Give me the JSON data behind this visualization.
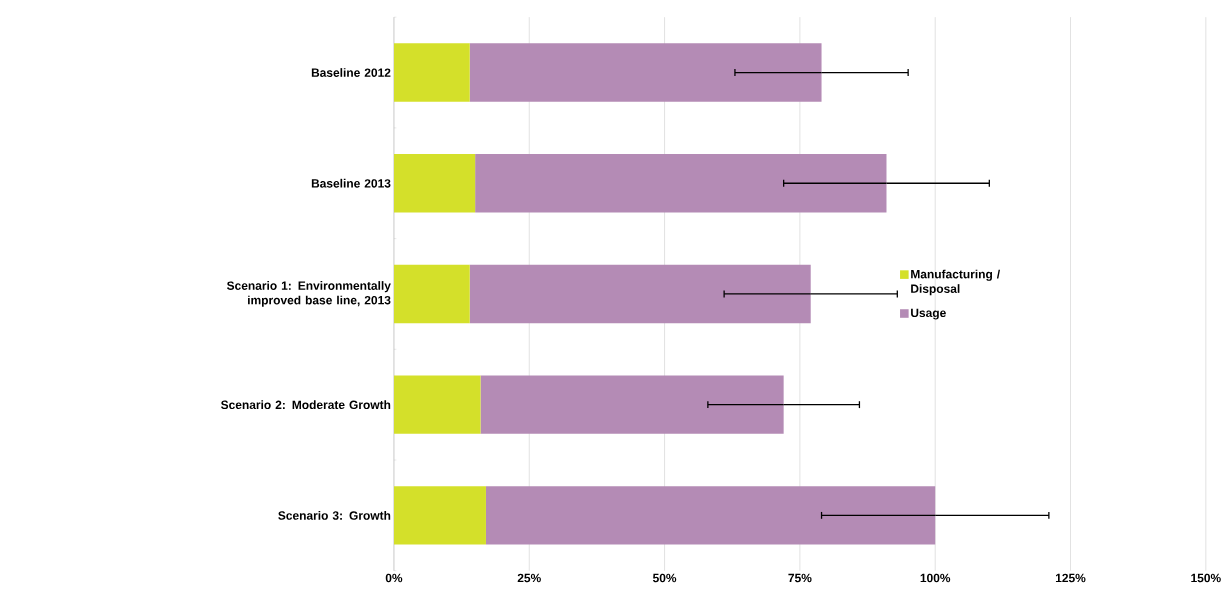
{
  "chart_data": {
    "type": "bar",
    "orientation": "horizontal",
    "stacked": true,
    "categories": [
      "Baseline 2012",
      "Baseline 2013",
      "Scenario 1: Environmentally improved base line, 2013",
      "Scenario 2: Moderate Growth",
      "Scenario 3: Growth"
    ],
    "series": [
      {
        "name": "Manufacturing / Disposal",
        "color": "#d4e02a",
        "values": [
          14,
          15,
          14,
          16,
          17
        ]
      },
      {
        "name": "Usage",
        "color": "#b48bb5",
        "values": [
          65,
          76,
          63,
          56,
          83
        ],
        "errors": [
          16,
          19,
          16,
          14,
          21
        ]
      }
    ],
    "xlim": [
      0,
      150
    ],
    "xticks": [
      {
        "value": 0,
        "label": "0%"
      },
      {
        "value": 25,
        "label": "25%"
      },
      {
        "value": 50,
        "label": "50%"
      },
      {
        "value": 75,
        "label": "75%"
      },
      {
        "value": 100,
        "label": "100%"
      },
      {
        "value": 125,
        "label": "125%"
      },
      {
        "value": 150,
        "label": "150%"
      }
    ],
    "grid": "x",
    "legend": "right"
  }
}
